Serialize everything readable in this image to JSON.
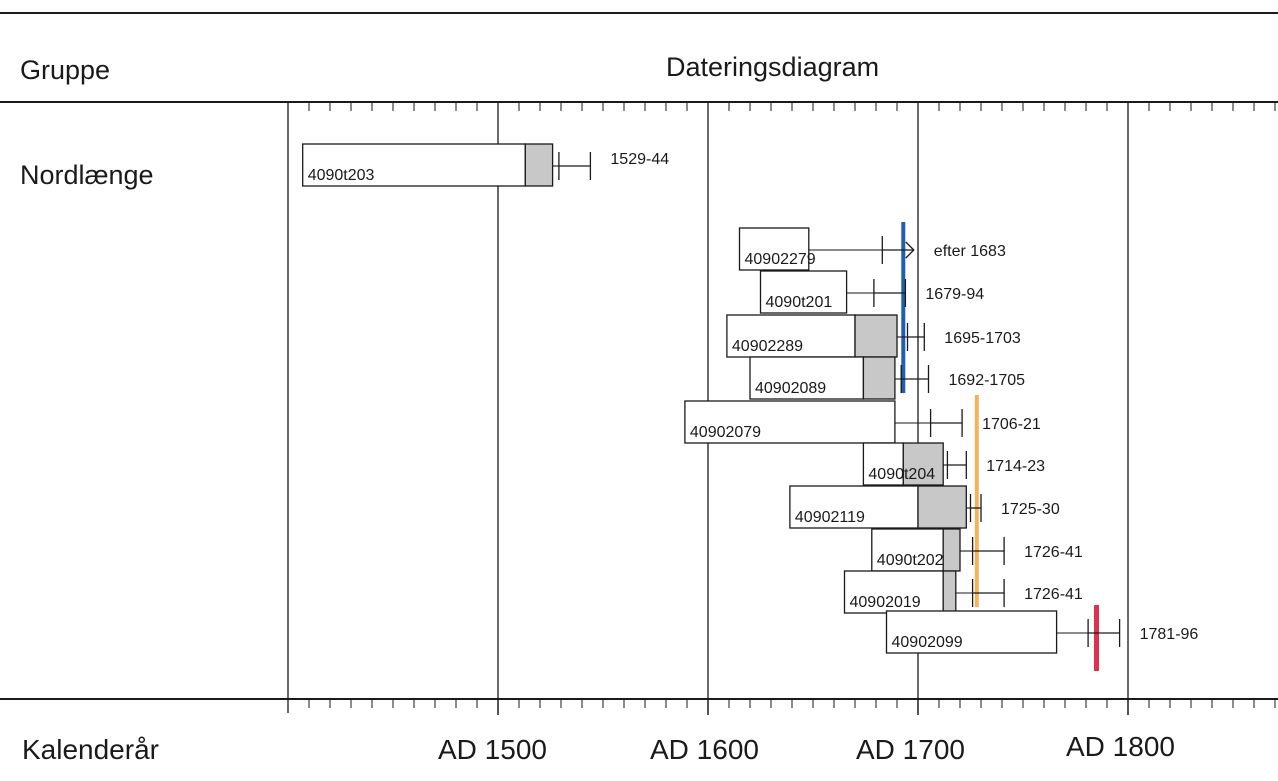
{
  "header": {
    "group_label": "Gruppe",
    "chart_title": "Dateringsdiagram"
  },
  "group": {
    "name": "Nordlænge"
  },
  "axis": {
    "label": "Kalenderår",
    "tick_labels": [
      "AD 1500",
      "AD 1600",
      "AD 1700",
      "AD 1800"
    ]
  },
  "colors": {
    "felling_blue": "#1f5fb0",
    "felling_orange": "#f5b25a",
    "felling_red": "#e03050",
    "sapwood_fill": "#c8c8c8",
    "line": "#1a1a1a"
  },
  "chart_data": {
    "type": "dendrochronology-bar",
    "title": "Dateringsdiagram",
    "xlabel": "Kalenderår",
    "xlim": [
      1400,
      1875
    ],
    "major_ticks": [
      1500,
      1600,
      1700,
      1800
    ],
    "minor_tick_step": 10,
    "samples": [
      {
        "id": "4090t203",
        "start": 1407,
        "heartwood_end": 1513,
        "sapwood_end": 1526,
        "bracket": [
          1529,
          1544
        ],
        "date_label": "1529-44",
        "open_end": false
      },
      {
        "id": "40902279",
        "start": 1615,
        "heartwood_end": 1648,
        "sapwood_end": 1648,
        "bracket": [
          1683,
          1698
        ],
        "date_label": "efter 1683",
        "open_end": true
      },
      {
        "id": "4090t201",
        "start": 1625,
        "heartwood_end": 1666,
        "sapwood_end": 1666,
        "bracket": [
          1679,
          1694
        ],
        "date_label": "1679-94",
        "open_end": false
      },
      {
        "id": "40902289",
        "start": 1609,
        "heartwood_end": 1670,
        "sapwood_end": 1690,
        "bracket": [
          1695,
          1703
        ],
        "date_label": "1695-1703",
        "open_end": false
      },
      {
        "id": "40902089",
        "start": 1620,
        "heartwood_end": 1674,
        "sapwood_end": 1689,
        "bracket": [
          1692,
          1705
        ],
        "date_label": "1692-1705",
        "open_end": false
      },
      {
        "id": "40902079",
        "start": 1589,
        "heartwood_end": 1689,
        "sapwood_end": 1689,
        "bracket": [
          1706,
          1721
        ],
        "date_label": "1706-21",
        "open_end": false
      },
      {
        "id": "4090t204",
        "start": 1674,
        "heartwood_end": 1693,
        "sapwood_end": 1712,
        "bracket": [
          1714,
          1723
        ],
        "date_label": "1714-23",
        "open_end": false
      },
      {
        "id": "40902119",
        "start": 1639,
        "heartwood_end": 1700,
        "sapwood_end": 1723,
        "bracket": [
          1725,
          1730
        ],
        "date_label": "1725-30",
        "open_end": false
      },
      {
        "id": "4090t202",
        "start": 1678,
        "heartwood_end": 1712,
        "sapwood_end": 1720,
        "bracket": [
          1726,
          1741
        ],
        "date_label": "1726-41",
        "open_end": false
      },
      {
        "id": "40902019",
        "start": 1665,
        "heartwood_end": 1712,
        "sapwood_end": 1718,
        "bracket": [
          1726,
          1741
        ],
        "date_label": "1726-41",
        "open_end": false
      },
      {
        "id": "40902099",
        "start": 1685,
        "heartwood_end": 1766,
        "sapwood_end": 1766,
        "bracket": [
          1781,
          1796
        ],
        "date_label": "1781-96",
        "open_end": false
      }
    ],
    "felling_markers": [
      {
        "year": 1693,
        "color": "blue",
        "from_sample": 1,
        "to_sample": 4
      },
      {
        "year": 1728,
        "color": "orange",
        "from_sample": 5,
        "to_sample": 9
      },
      {
        "year": 1785,
        "color": "red",
        "from_sample": 10,
        "to_sample": 10
      }
    ]
  }
}
